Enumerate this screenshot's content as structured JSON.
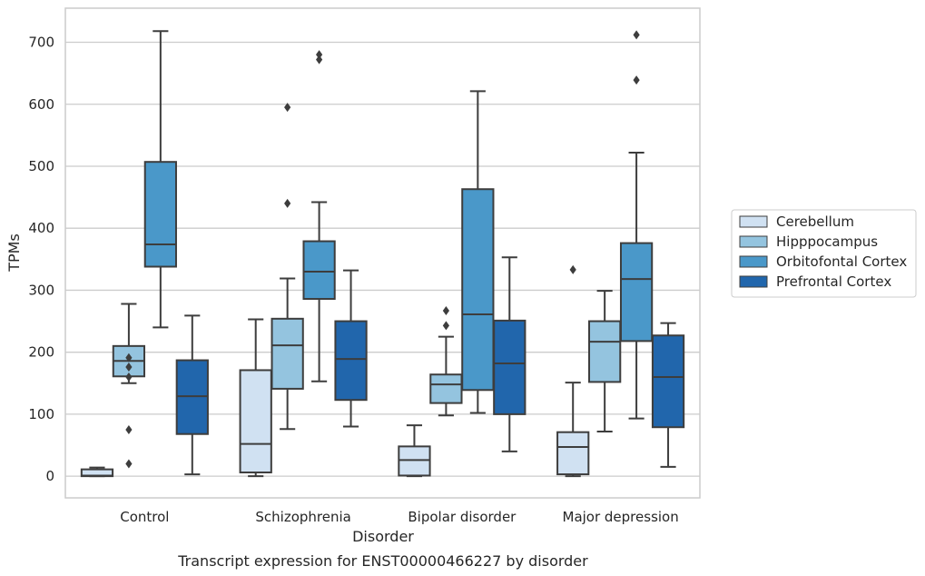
{
  "chart_data": {
    "type": "box",
    "title": "",
    "caption": "Transcript expression for ENST00000466227 by disorder",
    "xlabel": "Disorder",
    "ylabel": "TPMs",
    "ylim": [
      -35,
      755
    ],
    "yticks": [
      0,
      100,
      200,
      300,
      400,
      500,
      600,
      700
    ],
    "grid": "horizontal",
    "legend_position": "right",
    "categories": [
      "Control",
      "Schizophrenia",
      "Bipolar disorder",
      "Major depression"
    ],
    "series": [
      {
        "name": "Cerebellum",
        "color": "#d0e1f2",
        "boxes": [
          {
            "category": "Control",
            "whislo": 0,
            "q1": 0,
            "median": 1,
            "q3": 11,
            "whishi": 14,
            "fliers": []
          },
          {
            "category": "Schizophrenia",
            "whislo": 0,
            "q1": 6,
            "median": 52,
            "q3": 171,
            "whishi": 253,
            "fliers": []
          },
          {
            "category": "Bipolar disorder",
            "whislo": 0,
            "q1": 1,
            "median": 26,
            "q3": 48,
            "whishi": 82,
            "fliers": []
          },
          {
            "category": "Major depression",
            "whislo": 0,
            "q1": 3,
            "median": 47,
            "q3": 71,
            "whishi": 151,
            "fliers": [
              333
            ]
          }
        ]
      },
      {
        "name": "Hipppocampus",
        "color": "#94c4df",
        "boxes": [
          {
            "category": "Control",
            "whislo": 150,
            "q1": 161,
            "median": 186,
            "q3": 210,
            "whishi": 278,
            "fliers": [
              20,
              75,
              160,
              176,
              191
            ]
          },
          {
            "category": "Schizophrenia",
            "whislo": 76,
            "q1": 141,
            "median": 211,
            "q3": 254,
            "whishi": 319,
            "fliers": [
              440,
              595
            ]
          },
          {
            "category": "Bipolar disorder",
            "whislo": 98,
            "q1": 118,
            "median": 148,
            "q3": 164,
            "whishi": 225,
            "fliers": [
              243,
              267
            ]
          },
          {
            "category": "Major depression",
            "whislo": 72,
            "q1": 152,
            "median": 217,
            "q3": 250,
            "whishi": 299,
            "fliers": []
          }
        ]
      },
      {
        "name": "Orbitofontal Cortex",
        "color": "#4a98c9",
        "boxes": [
          {
            "category": "Control",
            "whislo": 240,
            "q1": 338,
            "median": 374,
            "q3": 507,
            "whishi": 718,
            "fliers": []
          },
          {
            "category": "Schizophrenia",
            "whislo": 153,
            "q1": 286,
            "median": 330,
            "q3": 379,
            "whishi": 442,
            "fliers": [
              672,
              680
            ]
          },
          {
            "category": "Bipolar disorder",
            "whislo": 102,
            "q1": 139,
            "median": 261,
            "q3": 463,
            "whishi": 621,
            "fliers": []
          },
          {
            "category": "Major depression",
            "whislo": 93,
            "q1": 218,
            "median": 318,
            "q3": 376,
            "whishi": 522,
            "fliers": [
              639,
              712
            ]
          }
        ]
      },
      {
        "name": "Prefrontal Cortex",
        "color": "#2166ac",
        "boxes": [
          {
            "category": "Control",
            "whislo": 3,
            "q1": 68,
            "median": 129,
            "q3": 187,
            "whishi": 259,
            "fliers": []
          },
          {
            "category": "Schizophrenia",
            "whislo": 80,
            "q1": 123,
            "median": 189,
            "q3": 250,
            "whishi": 332,
            "fliers": []
          },
          {
            "category": "Bipolar disorder",
            "whislo": 40,
            "q1": 100,
            "median": 182,
            "q3": 251,
            "whishi": 353,
            "fliers": []
          },
          {
            "category": "Major depression",
            "whislo": 15,
            "q1": 79,
            "median": 160,
            "q3": 227,
            "whishi": 247,
            "fliers": []
          }
        ]
      }
    ]
  }
}
